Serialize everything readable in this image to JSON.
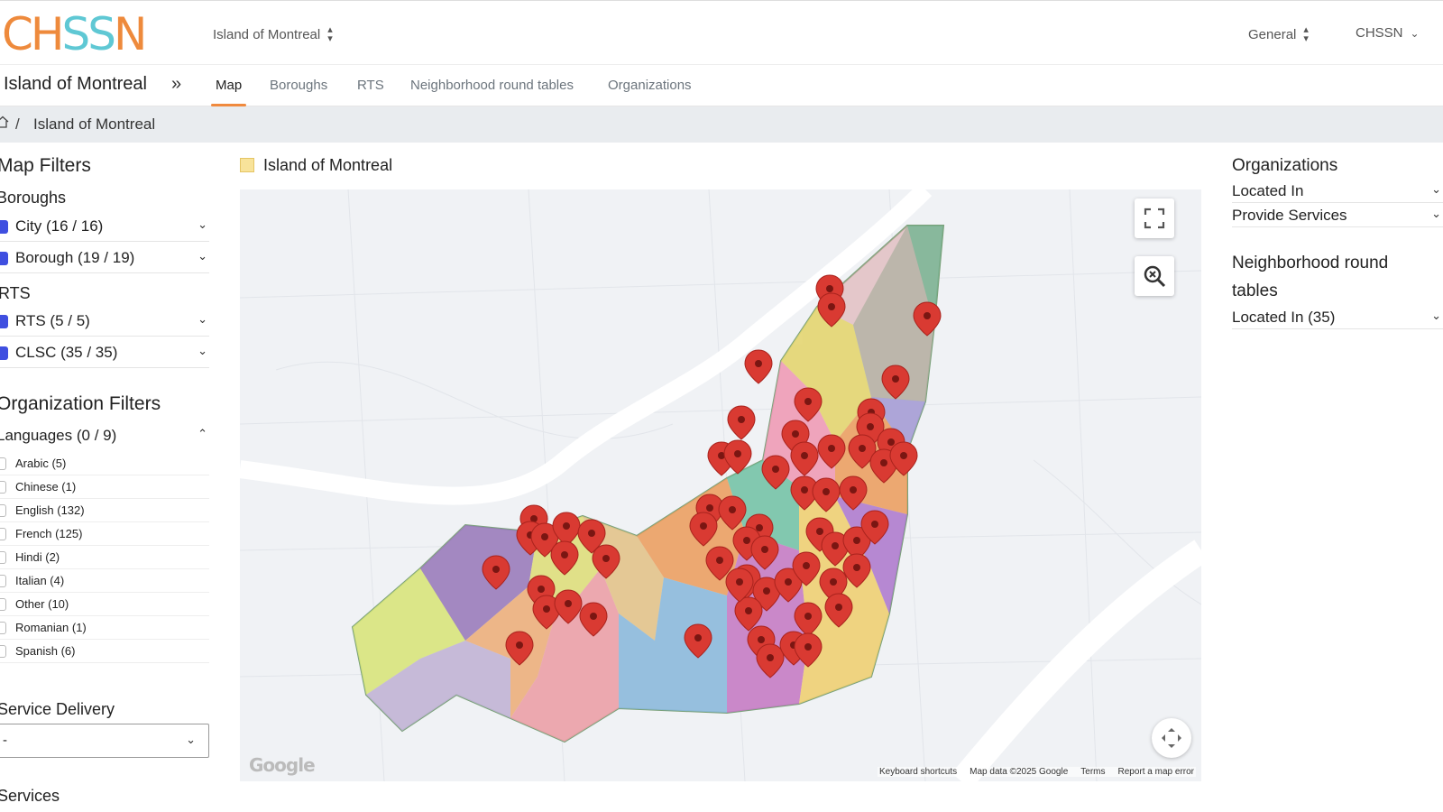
{
  "header": {
    "logo_part1": "CH",
    "logo_part2": "SS",
    "logo_part3": "N",
    "region_select": "Island of Montreal",
    "general_select": "General",
    "user_menu": "CHSSN"
  },
  "nav": {
    "title": "Island of Montreal",
    "tabs": [
      {
        "label": "Map",
        "active": true
      },
      {
        "label": "Boroughs"
      },
      {
        "label": "RTS"
      },
      {
        "label": "Neighborhood round tables"
      },
      {
        "label": "Organizations"
      }
    ]
  },
  "breadcrumb": {
    "separator": "/",
    "current": "Island of Montreal"
  },
  "map_filters": {
    "title": "Map Filters",
    "boroughs_heading": "Boroughs",
    "city": "City (16 / 16)",
    "borough": "Borough (19 / 19)",
    "rts_heading": "RTS",
    "rts": "RTS (5 / 5)",
    "clsc": "CLSC (35 / 35)"
  },
  "org_filters": {
    "title": "Organization Filters",
    "languages_label": "Languages (0 / 9)",
    "languages": [
      "Arabic (5)",
      "Chinese (1)",
      "English (132)",
      "French (125)",
      "Hindi (2)",
      "Italian (4)",
      "Other (10)",
      "Romanian (1)",
      "Spanish (6)"
    ],
    "service_delivery_heading": "Service Delivery",
    "service_delivery_value": "-",
    "services_heading": "Services"
  },
  "map_card": {
    "legend_label": "Island of Montreal",
    "google_logo": "Google",
    "footer": {
      "shortcuts": "Keyboard shortcuts",
      "map_data": "Map data ©2025 Google",
      "terms": "Terms",
      "report": "Report a map error"
    },
    "colors": {
      "marker": "#d93a32",
      "marker_dark": "#a9231d",
      "accent": "#f08a3e",
      "checkbox": "#3f4fe0"
    }
  },
  "right_panel": {
    "organizations_heading": "Organizations",
    "located_in": "Located In",
    "provide_services": "Provide Services",
    "nrt_heading_line1": "Neighborhood round",
    "nrt_heading_line2": "tables",
    "nrt_located_in": "Located In (35)"
  }
}
